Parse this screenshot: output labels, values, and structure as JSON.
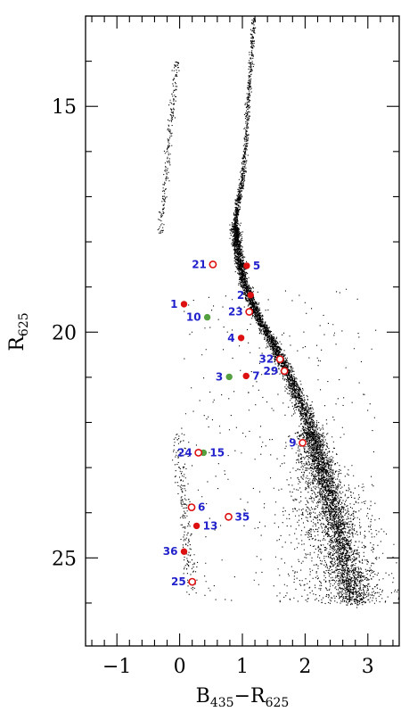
{
  "chart_data": {
    "type": "scatter",
    "title": "",
    "xlabel": {
      "main": "B",
      "sub1": "435",
      "dash": "−",
      "main2": "R",
      "sub2": "625"
    },
    "ylabel": {
      "main": "R",
      "sub": "625"
    },
    "xlim": [
      -1.5,
      3.5
    ],
    "ylim": [
      26.95,
      13.0
    ],
    "y_inverted": true,
    "x_ticks": [
      {
        "v": -1,
        "label": "−1"
      },
      {
        "v": 0,
        "label": "0"
      },
      {
        "v": 1,
        "label": "1"
      },
      {
        "v": 2,
        "label": "2"
      },
      {
        "v": 3,
        "label": "3"
      }
    ],
    "y_ticks": [
      {
        "v": 15,
        "label": "15"
      },
      {
        "v": 20,
        "label": "20"
      },
      {
        "v": 25,
        "label": "25"
      }
    ],
    "colors": {
      "red": "#dd1111",
      "green": "#55a040",
      "label": "#2222cc",
      "dots": "#000000"
    },
    "stars": [
      {
        "id": "1",
        "x": 0.07,
        "y": 19.38,
        "marker": "filled-red",
        "label_side": "left"
      },
      {
        "id": "2",
        "x": 1.13,
        "y": 19.18,
        "marker": "filled-red",
        "label_side": "left"
      },
      {
        "id": "3",
        "x": 0.79,
        "y": 20.99,
        "marker": "filled-green",
        "label_side": "left"
      },
      {
        "id": "4",
        "x": 0.98,
        "y": 20.13,
        "marker": "filled-red",
        "label_side": "left"
      },
      {
        "id": "5",
        "x": 1.07,
        "y": 18.53,
        "marker": "filled-red",
        "label_side": "right"
      },
      {
        "id": "6",
        "x": 0.19,
        "y": 23.88,
        "marker": "open-red",
        "label_side": "right"
      },
      {
        "id": "7",
        "x": 1.06,
        "y": 20.97,
        "marker": "filled-red",
        "label_side": "right"
      },
      {
        "id": "9",
        "x": 1.96,
        "y": 22.45,
        "marker": "open-red",
        "label_side": "left"
      },
      {
        "id": "10",
        "x": 0.44,
        "y": 19.67,
        "marker": "filled-green",
        "label_side": "left"
      },
      {
        "id": "13",
        "x": 0.27,
        "y": 24.29,
        "marker": "filled-red",
        "label_side": "right"
      },
      {
        "id": "15",
        "x": 0.38,
        "y": 22.67,
        "marker": "filled-green",
        "label_side": "right"
      },
      {
        "id": "21",
        "x": 0.53,
        "y": 18.5,
        "marker": "open-red",
        "label_side": "left"
      },
      {
        "id": "23",
        "x": 1.11,
        "y": 19.55,
        "marker": "open-red",
        "label_side": "left"
      },
      {
        "id": "24",
        "x": 0.3,
        "y": 22.67,
        "marker": "open-red",
        "label_side": "left"
      },
      {
        "id": "25",
        "x": 0.2,
        "y": 25.53,
        "marker": "open-red",
        "label_side": "left"
      },
      {
        "id": "29",
        "x": 1.67,
        "y": 20.86,
        "marker": "open-red",
        "label_side": "left"
      },
      {
        "id": "32",
        "x": 1.6,
        "y": 20.6,
        "marker": "open-red",
        "label_side": "left"
      },
      {
        "id": "35",
        "x": 0.78,
        "y": 24.09,
        "marker": "open-red",
        "label_side": "right"
      },
      {
        "id": "36",
        "x": 0.07,
        "y": 24.86,
        "marker": "filled-red",
        "label_side": "left"
      }
    ]
  }
}
